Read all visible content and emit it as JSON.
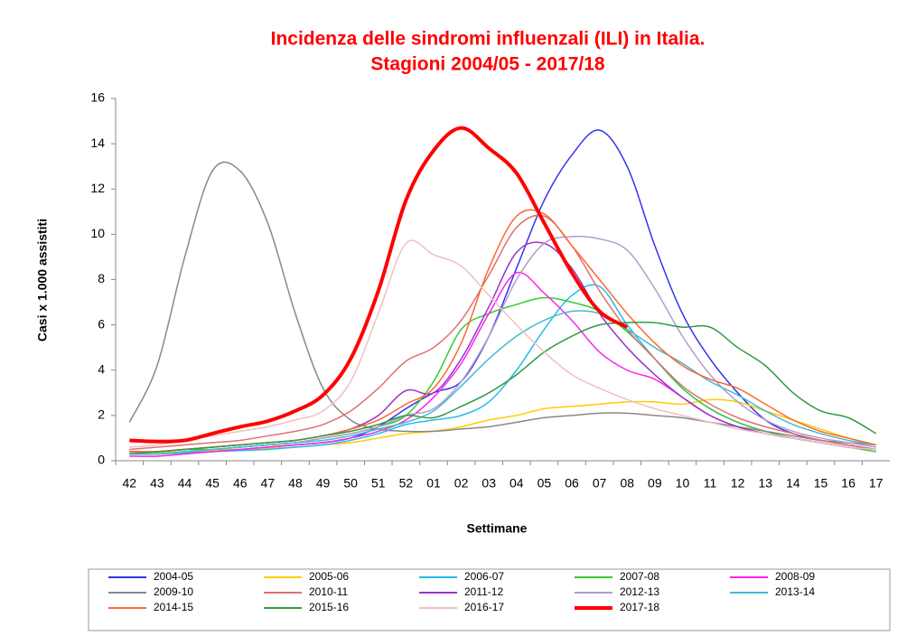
{
  "chart_data": {
    "type": "line",
    "title": "Incidenza delle sindromi influenzali (ILI) in Italia.",
    "subtitle": "Stagioni 2004/05 - 2017/18",
    "y_label": "Casi x 1.000 assistiti",
    "x_label": "Settimane",
    "categories": [
      "42",
      "43",
      "44",
      "45",
      "46",
      "47",
      "48",
      "49",
      "50",
      "51",
      "52",
      "01",
      "02",
      "03",
      "04",
      "05",
      "06",
      "07",
      "08",
      "09",
      "10",
      "11",
      "12",
      "13",
      "14",
      "15",
      "16",
      "17"
    ],
    "ylim": [
      0,
      16
    ],
    "yticks": [
      0,
      2,
      4,
      6,
      8,
      10,
      12,
      14,
      16
    ],
    "grid": false,
    "legend": "bottom",
    "series": [
      {
        "name": "2004-05",
        "color": "#3333ee",
        "values": [
          0.3,
          0.3,
          0.4,
          0.45,
          0.5,
          0.6,
          0.7,
          0.8,
          1.0,
          1.5,
          2.3,
          3.0,
          3.5,
          5.5,
          8.5,
          11.5,
          13.5,
          14.6,
          13.0,
          9.5,
          6.5,
          4.5,
          3.0,
          1.8,
          1.2,
          0.9,
          0.7,
          0.5
        ]
      },
      {
        "name": "2005-06",
        "color": "#ffcc00",
        "values": [
          0.3,
          0.35,
          0.4,
          0.45,
          0.5,
          0.55,
          0.6,
          0.7,
          0.8,
          1.0,
          1.2,
          1.3,
          1.5,
          1.8,
          2.0,
          2.3,
          2.4,
          2.5,
          2.6,
          2.6,
          2.5,
          2.7,
          2.6,
          2.2,
          1.8,
          1.4,
          1.0,
          0.7
        ]
      },
      {
        "name": "2006-07",
        "color": "#22bbee",
        "values": [
          0.3,
          0.3,
          0.35,
          0.4,
          0.45,
          0.5,
          0.6,
          0.7,
          0.9,
          1.2,
          1.6,
          1.8,
          2.0,
          2.6,
          4.0,
          5.8,
          7.3,
          7.7,
          6.0,
          4.5,
          3.2,
          2.3,
          1.7,
          1.3,
          1.0,
          0.8,
          0.6,
          0.5
        ]
      },
      {
        "name": "2007-08",
        "color": "#33cc33",
        "values": [
          0.4,
          0.4,
          0.5,
          0.5,
          0.6,
          0.7,
          0.8,
          1.0,
          1.2,
          1.5,
          2.0,
          3.5,
          5.8,
          6.5,
          6.9,
          7.2,
          7.0,
          6.6,
          5.7,
          4.5,
          3.2,
          2.3,
          1.7,
          1.3,
          1.0,
          0.8,
          0.6,
          0.4
        ]
      },
      {
        "name": "2008-09",
        "color": "#ff22ee",
        "values": [
          0.2,
          0.2,
          0.3,
          0.4,
          0.5,
          0.6,
          0.7,
          0.8,
          1.0,
          1.3,
          1.8,
          2.8,
          4.3,
          6.5,
          8.3,
          7.4,
          6.2,
          4.8,
          4.0,
          3.6,
          2.8,
          2.0,
          1.5,
          1.2,
          1.0,
          0.8,
          0.6,
          0.5
        ]
      },
      {
        "name": "2009-10",
        "color": "#888888",
        "values": [
          1.7,
          4.2,
          9.0,
          12.8,
          12.8,
          10.5,
          6.5,
          3.2,
          1.8,
          1.4,
          1.3,
          1.3,
          1.4,
          1.5,
          1.7,
          1.9,
          2.0,
          2.1,
          2.1,
          2.0,
          1.9,
          1.7,
          1.5,
          1.3,
          1.1,
          0.9,
          0.8,
          0.7
        ]
      },
      {
        "name": "2010-11",
        "color": "#e07070",
        "values": [
          0.5,
          0.6,
          0.7,
          0.8,
          0.9,
          1.1,
          1.3,
          1.6,
          2.2,
          3.2,
          4.4,
          5.0,
          6.2,
          8.2,
          10.3,
          10.8,
          9.5,
          7.5,
          5.8,
          4.5,
          3.3,
          2.5,
          1.9,
          1.5,
          1.2,
          0.9,
          0.7,
          0.5
        ]
      },
      {
        "name": "2011-12",
        "color": "#9933cc",
        "values": [
          0.4,
          0.4,
          0.5,
          0.6,
          0.7,
          0.8,
          0.9,
          1.1,
          1.4,
          2.0,
          3.1,
          3.0,
          4.5,
          6.8,
          9.2,
          9.6,
          8.5,
          6.5,
          5.0,
          3.8,
          2.8,
          2.0,
          1.5,
          1.2,
          1.0,
          0.8,
          0.6,
          0.5
        ]
      },
      {
        "name": "2012-13",
        "color": "#b39ccc",
        "values": [
          0.3,
          0.3,
          0.4,
          0.5,
          0.6,
          0.7,
          0.8,
          1.0,
          1.2,
          1.5,
          2.0,
          2.3,
          3.5,
          5.5,
          8.0,
          9.6,
          9.9,
          9.8,
          9.3,
          7.6,
          5.5,
          3.8,
          2.6,
          1.8,
          1.3,
          1.0,
          0.8,
          0.6
        ]
      },
      {
        "name": "2013-14",
        "color": "#44bbcc",
        "values": [
          0.3,
          0.3,
          0.4,
          0.5,
          0.6,
          0.7,
          0.8,
          0.9,
          1.1,
          1.4,
          1.7,
          2.2,
          3.3,
          4.5,
          5.5,
          6.2,
          6.6,
          6.5,
          5.8,
          5.0,
          4.3,
          3.5,
          2.9,
          2.2,
          1.6,
          1.2,
          0.9,
          0.7
        ]
      },
      {
        "name": "2014-15",
        "color": "#ff6633",
        "values": [
          0.4,
          0.4,
          0.5,
          0.6,
          0.7,
          0.8,
          0.9,
          1.1,
          1.4,
          1.8,
          2.5,
          3.2,
          5.2,
          8.5,
          10.8,
          10.9,
          9.5,
          8.0,
          6.5,
          5.2,
          4.2,
          3.6,
          3.2,
          2.5,
          1.8,
          1.3,
          1.0,
          0.7
        ]
      },
      {
        "name": "2015-16",
        "color": "#339944",
        "values": [
          0.3,
          0.4,
          0.5,
          0.6,
          0.7,
          0.8,
          0.9,
          1.1,
          1.3,
          1.6,
          2.0,
          1.9,
          2.4,
          3.0,
          3.8,
          4.8,
          5.5,
          6.0,
          6.1,
          6.1,
          5.9,
          5.9,
          5.0,
          4.2,
          3.0,
          2.2,
          1.9,
          1.2
        ]
      },
      {
        "name": "2016-17",
        "color": "#f0c0c0",
        "values": [
          0.6,
          0.7,
          0.9,
          1.1,
          1.3,
          1.5,
          1.8,
          2.2,
          3.5,
          6.5,
          9.6,
          9.1,
          8.6,
          7.3,
          6.0,
          4.8,
          3.8,
          3.2,
          2.7,
          2.3,
          2.0,
          1.7,
          1.4,
          1.2,
          1.0,
          0.8,
          0.6,
          0.5
        ]
      },
      {
        "name": "2017-18",
        "color": "#ff0000",
        "bold": true,
        "values": [
          0.9,
          0.85,
          0.9,
          1.2,
          1.5,
          1.75,
          2.2,
          2.9,
          4.5,
          7.5,
          11.5,
          13.7,
          14.7,
          13.8,
          12.7,
          10.5,
          8.3,
          6.6,
          5.9,
          null,
          null,
          null,
          null,
          null,
          null,
          null,
          null,
          null
        ]
      }
    ]
  }
}
